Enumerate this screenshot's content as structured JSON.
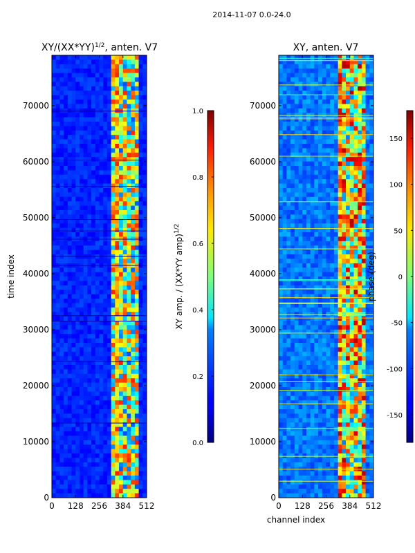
{
  "figure": {
    "suptitle": "2014-11-07 0.0-24.0"
  },
  "chart_data": [
    {
      "type": "heatmap",
      "id": "left",
      "title": "XY/(XX*YY)",
      "title_superscript": "1/2",
      "title_suffix": ", anten. V7",
      "xlabel": "",
      "ylabel": "time index",
      "xlim": [
        0,
        512
      ],
      "ylim": [
        0,
        79000
      ],
      "xticks": [
        0,
        128,
        256,
        384,
        512
      ],
      "yticks": [
        0,
        10000,
        20000,
        30000,
        40000,
        50000,
        60000,
        70000
      ],
      "colormap": "jet",
      "colorbar": {
        "label": "XY amp. / (XX*YY amp)",
        "label_superscript": "1/2",
        "range": [
          0.0,
          1.0
        ],
        "ticks": [
          "0.0",
          "0.2",
          "0.4",
          "0.6",
          "0.8",
          "1.0"
        ]
      }
    },
    {
      "type": "heatmap",
      "id": "right",
      "title": "XY, anten. V7",
      "xlabel": "channel index",
      "ylabel": "",
      "xlim": [
        0,
        512
      ],
      "ylim": [
        0,
        79000
      ],
      "xticks": [
        0,
        128,
        256,
        384,
        512
      ],
      "yticks": [
        0,
        10000,
        20000,
        30000,
        40000,
        50000,
        60000,
        70000
      ],
      "colormap": "jet",
      "colorbar": {
        "label": "phase (deg)",
        "range": [
          -180,
          180
        ],
        "ticks": [
          "-150",
          "-100",
          "-50",
          "0",
          "50",
          "100",
          "150"
        ]
      }
    }
  ]
}
